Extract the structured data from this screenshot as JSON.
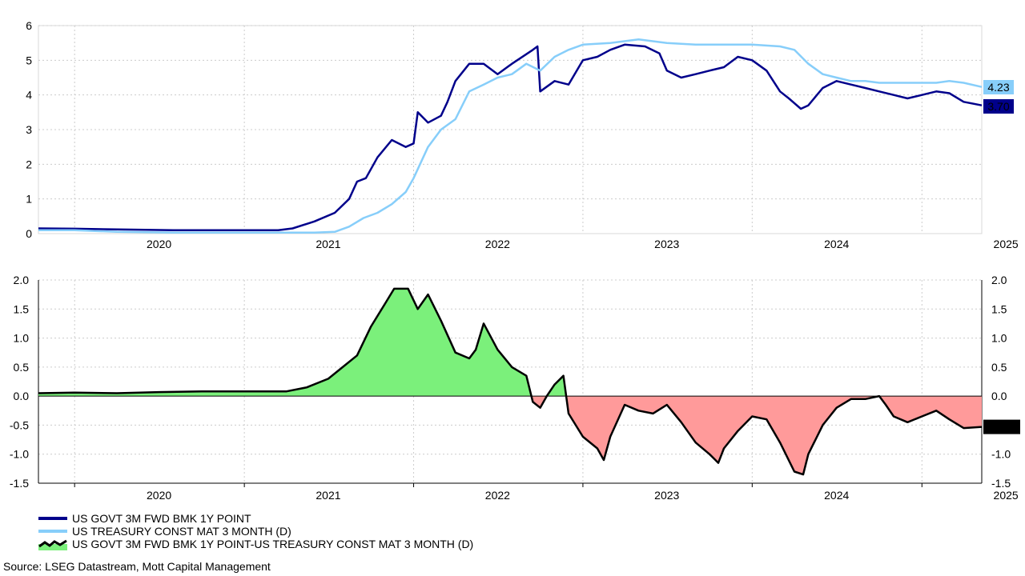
{
  "chart_data": [
    {
      "type": "line",
      "ylim": [
        0,
        6
      ],
      "yticks": [
        "0",
        "1",
        "2",
        "3",
        "4",
        "5",
        "6"
      ],
      "xticks": [
        "2020",
        "2021",
        "2022",
        "2023",
        "2024",
        "2025"
      ],
      "x_range": [
        "2019-10-15",
        "2025-05-10"
      ],
      "grid": true,
      "series": [
        {
          "name": "US GOVT 3M FWD BMK 1Y POINT",
          "color": "#00008b",
          "last_label": "3.70",
          "points": [
            [
              "2019-10-15",
              0.15
            ],
            [
              "2020-01-01",
              0.14
            ],
            [
              "2020-04-01",
              0.12
            ],
            [
              "2020-08-01",
              0.1
            ],
            [
              "2021-01-01",
              0.1
            ],
            [
              "2021-03-15",
              0.1
            ],
            [
              "2021-04-15",
              0.15
            ],
            [
              "2021-06-01",
              0.35
            ],
            [
              "2021-07-15",
              0.6
            ],
            [
              "2021-08-15",
              1.0
            ],
            [
              "2021-09-01",
              1.5
            ],
            [
              "2021-09-20",
              1.6
            ],
            [
              "2021-10-15",
              2.2
            ],
            [
              "2021-11-15",
              2.7
            ],
            [
              "2021-12-15",
              2.5
            ],
            [
              "2022-01-01",
              2.6
            ],
            [
              "2022-01-10",
              3.5
            ],
            [
              "2022-02-01",
              3.2
            ],
            [
              "2022-03-01",
              3.4
            ],
            [
              "2022-03-15",
              3.8
            ],
            [
              "2022-04-01",
              4.4
            ],
            [
              "2022-05-01",
              4.9
            ],
            [
              "2022-06-01",
              4.9
            ],
            [
              "2022-07-01",
              4.6
            ],
            [
              "2022-08-01",
              4.9
            ],
            [
              "2022-09-15",
              5.3
            ],
            [
              "2022-09-25",
              5.4
            ],
            [
              "2022-10-01",
              4.1
            ],
            [
              "2022-11-01",
              4.4
            ],
            [
              "2022-12-01",
              4.3
            ],
            [
              "2023-01-01",
              5.0
            ],
            [
              "2023-02-01",
              5.1
            ],
            [
              "2023-03-01",
              5.3
            ],
            [
              "2023-04-01",
              5.45
            ],
            [
              "2023-05-15",
              5.4
            ],
            [
              "2023-06-15",
              5.2
            ],
            [
              "2023-07-01",
              4.7
            ],
            [
              "2023-08-01",
              4.5
            ],
            [
              "2023-09-01",
              4.6
            ],
            [
              "2023-10-01",
              4.7
            ],
            [
              "2023-11-01",
              4.8
            ],
            [
              "2023-12-01",
              5.1
            ],
            [
              "2024-01-01",
              5.0
            ],
            [
              "2024-02-01",
              4.7
            ],
            [
              "2024-03-01",
              4.1
            ],
            [
              "2024-03-20",
              3.9
            ],
            [
              "2024-04-15",
              3.6
            ],
            [
              "2024-05-01",
              3.7
            ],
            [
              "2024-06-01",
              4.2
            ],
            [
              "2024-07-01",
              4.4
            ],
            [
              "2024-08-01",
              4.3
            ],
            [
              "2024-09-01",
              4.2
            ],
            [
              "2024-10-01",
              4.1
            ],
            [
              "2024-11-01",
              4.0
            ],
            [
              "2024-12-01",
              3.9
            ],
            [
              "2025-01-01",
              4.0
            ],
            [
              "2025-02-01",
              4.1
            ],
            [
              "2025-03-01",
              4.05
            ],
            [
              "2025-04-01",
              3.8
            ],
            [
              "2025-05-10",
              3.7
            ]
          ]
        },
        {
          "name": "US TREASURY CONST MAT 3 MONTH (D)",
          "color": "#87cefa",
          "last_label": "4.23",
          "points": [
            [
              "2019-10-15",
              0.1
            ],
            [
              "2020-01-01",
              0.1
            ],
            [
              "2020-04-01",
              0.05
            ],
            [
              "2020-08-01",
              0.03
            ],
            [
              "2021-01-01",
              0.03
            ],
            [
              "2021-06-01",
              0.03
            ],
            [
              "2021-07-15",
              0.05
            ],
            [
              "2021-08-15",
              0.2
            ],
            [
              "2021-09-15",
              0.45
            ],
            [
              "2021-10-15",
              0.6
            ],
            [
              "2021-11-15",
              0.85
            ],
            [
              "2021-12-15",
              1.2
            ],
            [
              "2022-01-01",
              1.6
            ],
            [
              "2022-02-01",
              2.5
            ],
            [
              "2022-03-01",
              3.0
            ],
            [
              "2022-04-01",
              3.3
            ],
            [
              "2022-05-01",
              4.1
            ],
            [
              "2022-06-01",
              4.3
            ],
            [
              "2022-07-01",
              4.5
            ],
            [
              "2022-08-01",
              4.6
            ],
            [
              "2022-09-01",
              4.9
            ],
            [
              "2022-10-01",
              4.7
            ],
            [
              "2022-11-01",
              5.1
            ],
            [
              "2022-12-01",
              5.3
            ],
            [
              "2023-01-01",
              5.45
            ],
            [
              "2023-03-01",
              5.5
            ],
            [
              "2023-05-01",
              5.6
            ],
            [
              "2023-07-01",
              5.5
            ],
            [
              "2023-09-01",
              5.45
            ],
            [
              "2023-11-01",
              5.45
            ],
            [
              "2024-01-01",
              5.45
            ],
            [
              "2024-03-01",
              5.4
            ],
            [
              "2024-04-01",
              5.3
            ],
            [
              "2024-05-01",
              4.9
            ],
            [
              "2024-06-01",
              4.6
            ],
            [
              "2024-07-01",
              4.5
            ],
            [
              "2024-08-01",
              4.4
            ],
            [
              "2024-09-01",
              4.4
            ],
            [
              "2024-10-01",
              4.35
            ],
            [
              "2024-11-01",
              4.35
            ],
            [
              "2024-12-01",
              4.35
            ],
            [
              "2025-01-01",
              4.35
            ],
            [
              "2025-02-01",
              4.35
            ],
            [
              "2025-03-01",
              4.4
            ],
            [
              "2025-04-01",
              4.35
            ],
            [
              "2025-05-10",
              4.23
            ]
          ]
        }
      ]
    },
    {
      "type": "area",
      "ylim": [
        -1.5,
        2.0
      ],
      "yticks": [
        "-1.5",
        "-1.0",
        "-0.5",
        "0.0",
        "0.5",
        "1.0",
        "1.5",
        "2.0"
      ],
      "xticks": [
        "2020",
        "2021",
        "2022",
        "2023",
        "2024",
        "2025"
      ],
      "x_range": [
        "2019-10-15",
        "2025-05-10"
      ],
      "grid": true,
      "positive_color": "#7bf07b",
      "negative_color": "#ff9a9a",
      "line_color": "#000000",
      "series": [
        {
          "name": "US GOVT 3M FWD BMK 1Y POINT-US TREASURY CONST MAT 3 MONTH (D)",
          "last_label": "-0.53",
          "points": [
            [
              "2019-10-15",
              0.05
            ],
            [
              "2020-01-01",
              0.06
            ],
            [
              "2020-04-01",
              0.05
            ],
            [
              "2020-07-01",
              0.07
            ],
            [
              "2020-10-01",
              0.08
            ],
            [
              "2021-01-01",
              0.08
            ],
            [
              "2021-04-01",
              0.08
            ],
            [
              "2021-05-15",
              0.15
            ],
            [
              "2021-07-01",
              0.3
            ],
            [
              "2021-08-01",
              0.5
            ],
            [
              "2021-09-01",
              0.7
            ],
            [
              "2021-10-01",
              1.2
            ],
            [
              "2021-11-01",
              1.6
            ],
            [
              "2021-11-20",
              1.85
            ],
            [
              "2021-12-20",
              1.85
            ],
            [
              "2022-01-10",
              1.5
            ],
            [
              "2022-02-01",
              1.75
            ],
            [
              "2022-03-01",
              1.3
            ],
            [
              "2022-04-01",
              0.75
            ],
            [
              "2022-05-01",
              0.65
            ],
            [
              "2022-05-15",
              0.8
            ],
            [
              "2022-06-01",
              1.25
            ],
            [
              "2022-07-01",
              0.8
            ],
            [
              "2022-08-01",
              0.5
            ],
            [
              "2022-09-01",
              0.35
            ],
            [
              "2022-09-15",
              -0.1
            ],
            [
              "2022-10-01",
              -0.2
            ],
            [
              "2022-10-15",
              0.0
            ],
            [
              "2022-11-01",
              0.2
            ],
            [
              "2022-11-20",
              0.35
            ],
            [
              "2022-12-01",
              -0.3
            ],
            [
              "2023-01-01",
              -0.7
            ],
            [
              "2023-02-01",
              -0.9
            ],
            [
              "2023-02-15",
              -1.1
            ],
            [
              "2023-03-01",
              -0.7
            ],
            [
              "2023-04-01",
              -0.15
            ],
            [
              "2023-05-01",
              -0.25
            ],
            [
              "2023-06-01",
              -0.3
            ],
            [
              "2023-07-01",
              -0.15
            ],
            [
              "2023-08-01",
              -0.45
            ],
            [
              "2023-09-01",
              -0.8
            ],
            [
              "2023-10-01",
              -1.0
            ],
            [
              "2023-10-20",
              -1.15
            ],
            [
              "2023-11-01",
              -0.9
            ],
            [
              "2023-12-01",
              -0.6
            ],
            [
              "2024-01-01",
              -0.35
            ],
            [
              "2024-02-01",
              -0.4
            ],
            [
              "2024-03-01",
              -0.8
            ],
            [
              "2024-04-01",
              -1.3
            ],
            [
              "2024-04-20",
              -1.35
            ],
            [
              "2024-05-01",
              -1.0
            ],
            [
              "2024-06-01",
              -0.5
            ],
            [
              "2024-07-01",
              -0.2
            ],
            [
              "2024-08-01",
              -0.05
            ],
            [
              "2024-09-01",
              -0.05
            ],
            [
              "2024-10-01",
              0.0
            ],
            [
              "2024-10-15",
              -0.15
            ],
            [
              "2024-11-01",
              -0.35
            ],
            [
              "2024-12-01",
              -0.45
            ],
            [
              "2025-01-01",
              -0.35
            ],
            [
              "2025-02-01",
              -0.25
            ],
            [
              "2025-03-01",
              -0.4
            ],
            [
              "2025-04-01",
              -0.55
            ],
            [
              "2025-05-10",
              -0.53
            ]
          ]
        }
      ]
    }
  ],
  "legend": [
    {
      "label": "US GOVT 3M FWD BMK 1Y POINT",
      "color": "#00008b",
      "kind": "line"
    },
    {
      "label": "US TREASURY CONST MAT 3 MONTH (D)",
      "color": "#87cefa",
      "kind": "line"
    },
    {
      "label": "US GOVT 3M FWD BMK 1Y POINT-US TREASURY CONST MAT 3 MONTH (D)",
      "color": "#7bf07b",
      "kind": "area"
    }
  ],
  "source": "Source: LSEG Datastream, Mott Capital Management"
}
